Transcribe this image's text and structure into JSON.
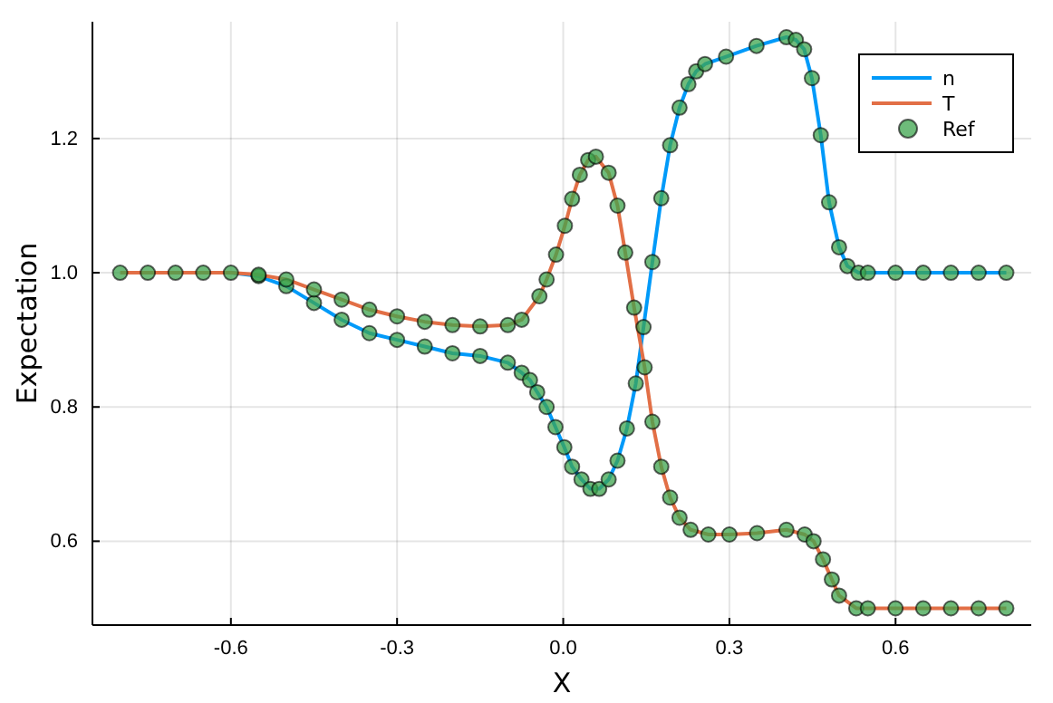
{
  "chart_data": {
    "type": "line",
    "xlabel": "X",
    "ylabel": "Expectation",
    "xlim": [
      -0.85,
      0.845
    ],
    "ylim": [
      0.475,
      1.374
    ],
    "xticks": [
      -0.6,
      -0.3,
      {
        "value": 0,
        "label": "0.0"
      },
      0.3,
      0.6
    ],
    "yticks": [
      0.6,
      0.8,
      {
        "value": 1,
        "label": "1.0"
      },
      1.2
    ],
    "grid": true,
    "legend": "top right",
    "series": [
      {
        "name": "n",
        "color": "#009af9",
        "x": [
          -0.65,
          -0.6,
          -0.55,
          -0.5,
          -0.45,
          -0.4,
          -0.35,
          -0.3,
          -0.25,
          -0.2,
          -0.15,
          -0.1,
          -0.075,
          -0.06,
          -0.047,
          -0.03,
          -0.014,
          0.002,
          0.016,
          0.033,
          0.049,
          0.065,
          0.082,
          0.098,
          0.115,
          0.131,
          0.145,
          0.161,
          0.177,
          0.193,
          0.21,
          0.226,
          0.24,
          0.256,
          0.294,
          0.349,
          0.403,
          0.42,
          0.435,
          0.449,
          0.465,
          0.48,
          0.498,
          0.513,
          0.533,
          0.55,
          0.6,
          0.65,
          0.7,
          0.75,
          0.8
        ],
        "values": [
          1,
          1,
          0.995,
          0.98,
          0.955,
          0.93,
          0.91,
          0.9,
          0.89,
          0.88,
          0.876,
          0.866,
          0.851,
          0.84,
          0.822,
          0.8,
          0.77,
          0.74,
          0.711,
          0.692,
          0.678,
          0.678,
          0.692,
          0.72,
          0.768,
          0.835,
          0.919,
          1.016,
          1.111,
          1.19,
          1.246,
          1.281,
          1.3,
          1.311,
          1.322,
          1.338,
          1.351,
          1.347,
          1.333,
          1.29,
          1.205,
          1.105,
          1.038,
          1.01,
          1,
          1,
          1,
          1,
          1,
          1,
          1
        ]
      },
      {
        "name": "T",
        "color": "#e26f46",
        "x": [
          -0.8,
          -0.75,
          -0.7,
          -0.65,
          -0.6,
          -0.55,
          -0.5,
          -0.45,
          -0.4,
          -0.35,
          -0.3,
          -0.25,
          -0.2,
          -0.15,
          -0.1,
          -0.075,
          -0.043,
          -0.03,
          -0.013,
          0.003,
          0.016,
          0.03,
          0.045,
          0.059,
          0.082,
          0.098,
          0.112,
          0.128,
          0.147,
          0.161,
          0.177,
          0.193,
          0.21,
          0.23,
          0.262,
          0.3,
          0.35,
          0.403,
          0.436,
          0.452,
          0.469,
          0.485,
          0.498,
          0.529,
          0.55,
          0.6,
          0.65,
          0.7,
          0.75,
          0.8
        ],
        "values": [
          1,
          1,
          1,
          1,
          1,
          0.997,
          0.99,
          0.975,
          0.96,
          0.945,
          0.935,
          0.927,
          0.922,
          0.92,
          0.922,
          0.93,
          0.965,
          0.99,
          1.027,
          1.07,
          1.11,
          1.146,
          1.168,
          1.173,
          1.149,
          1.1,
          1.03,
          0.948,
          0.859,
          0.778,
          0.711,
          0.665,
          0.635,
          0.617,
          0.61,
          0.61,
          0.612,
          0.617,
          0.61,
          0.6,
          0.573,
          0.543,
          0.519,
          0.5,
          0.5,
          0.5,
          0.5,
          0.5,
          0.5,
          0.5
        ]
      },
      {
        "name": "Ref",
        "type": "scatter",
        "marker": "circle",
        "color": "#3da44d",
        "x": [
          -0.8,
          -0.75,
          -0.7,
          -0.65,
          -0.6,
          -0.55,
          -0.5,
          -0.45,
          -0.4,
          -0.35,
          -0.3,
          -0.25,
          -0.2,
          -0.15,
          -0.1,
          -0.075,
          -0.06,
          -0.047,
          -0.03,
          -0.014,
          0.002,
          0.016,
          0.033,
          0.049,
          0.065,
          0.082,
          0.098,
          0.115,
          0.131,
          0.145,
          0.161,
          0.177,
          0.193,
          0.21,
          0.226,
          0.24,
          0.256,
          0.294,
          0.349,
          0.403,
          0.42,
          0.435,
          0.449,
          0.465,
          0.48,
          0.498,
          0.513,
          0.533,
          0.55,
          0.6,
          0.65,
          0.7,
          0.75,
          0.8,
          -0.55,
          -0.5,
          -0.45,
          -0.4,
          -0.35,
          -0.3,
          -0.25,
          -0.2,
          -0.15,
          -0.1,
          -0.075,
          -0.043,
          -0.03,
          -0.013,
          0.003,
          0.016,
          0.03,
          0.045,
          0.059,
          0.082,
          0.098,
          0.112,
          0.128,
          0.147,
          0.161,
          0.177,
          0.193,
          0.21,
          0.23,
          0.262,
          0.3,
          0.35,
          0.403,
          0.436,
          0.452,
          0.469,
          0.485,
          0.498,
          0.529,
          0.55,
          0.6,
          0.65,
          0.7,
          0.75,
          0.8
        ],
        "values": [
          1,
          1,
          1,
          1,
          1,
          0.995,
          0.98,
          0.955,
          0.93,
          0.91,
          0.9,
          0.89,
          0.88,
          0.876,
          0.866,
          0.851,
          0.84,
          0.822,
          0.8,
          0.77,
          0.74,
          0.711,
          0.692,
          0.678,
          0.678,
          0.692,
          0.72,
          0.768,
          0.835,
          0.919,
          1.016,
          1.111,
          1.19,
          1.246,
          1.281,
          1.3,
          1.311,
          1.322,
          1.338,
          1.351,
          1.347,
          1.333,
          1.29,
          1.205,
          1.105,
          1.038,
          1.01,
          1,
          1,
          1,
          1,
          1,
          1,
          1,
          0.997,
          0.99,
          0.975,
          0.96,
          0.945,
          0.935,
          0.927,
          0.922,
          0.92,
          0.922,
          0.93,
          0.965,
          0.99,
          1.027,
          1.07,
          1.11,
          1.146,
          1.168,
          1.173,
          1.149,
          1.1,
          1.03,
          0.948,
          0.859,
          0.778,
          0.711,
          0.665,
          0.635,
          0.617,
          0.61,
          0.61,
          0.612,
          0.617,
          0.61,
          0.6,
          0.573,
          0.543,
          0.519,
          0.5,
          0.5,
          0.5,
          0.5,
          0.5,
          0.5,
          0.5
        ]
      }
    ]
  }
}
